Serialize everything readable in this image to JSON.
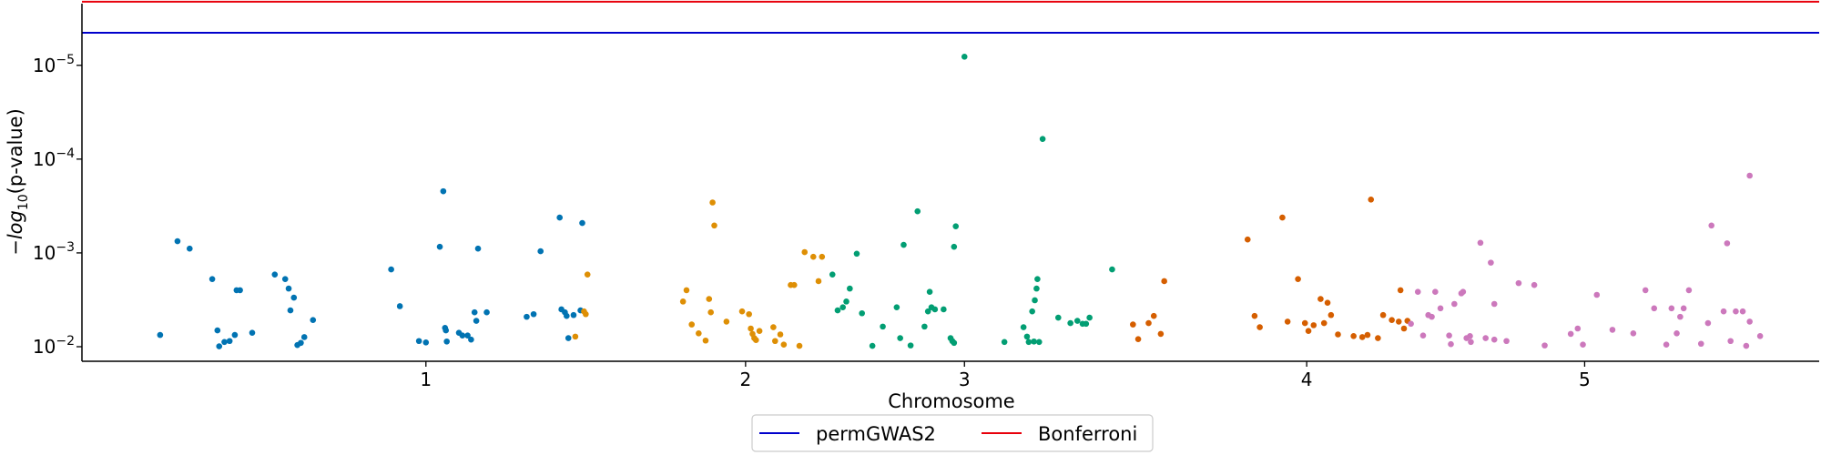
{
  "chart_data": {
    "type": "scatter",
    "title": "",
    "xlabel": "Chromosome",
    "ylabel_prefix": "−",
    "ylabel_italic": "log",
    "ylabel_sub": "10",
    "ylabel_suffix": "(p-value)",
    "y_scale": "log",
    "y_inverted": true,
    "ylim_pvalue": [
      0.0143,
      2.2e-06
    ],
    "y_ticks": [
      {
        "pvalue": 1e-05,
        "base": "10",
        "exp": "−5"
      },
      {
        "pvalue": 0.0001,
        "base": "10",
        "exp": "−4"
      },
      {
        "pvalue": 0.001,
        "base": "10",
        "exp": "−3"
      },
      {
        "pvalue": 0.01,
        "base": "10",
        "exp": "−2"
      }
    ],
    "xlim": [
      0,
      100
    ],
    "x_ticks": [
      {
        "x": 19.8,
        "label": "1"
      },
      {
        "x": 38.2,
        "label": "2"
      },
      {
        "x": 50.8,
        "label": "3"
      },
      {
        "x": 70.5,
        "label": "4"
      },
      {
        "x": 86.5,
        "label": "5"
      }
    ],
    "thresholds": [
      {
        "name": "permGWAS2",
        "pvalue": 4.5e-06,
        "color": "#0000cc"
      },
      {
        "name": "Bonferroni",
        "pvalue": 2.1e-06,
        "color": "#e8000b"
      }
    ],
    "grid": false,
    "legend_placement": "bottom-center",
    "series": [
      {
        "color": "#0173b2",
        "points": [
          [
            4.5,
            0.0075
          ],
          [
            5.5,
            0.00075
          ],
          [
            6.2,
            0.0009
          ],
          [
            7.5,
            0.0019
          ],
          [
            7.8,
            0.0067
          ],
          [
            7.9,
            0.0099
          ],
          [
            8.2,
            0.0089
          ],
          [
            8.5,
            0.0087
          ],
          [
            8.8,
            0.0075
          ],
          [
            8.9,
            0.0025
          ],
          [
            9.1,
            0.0025
          ],
          [
            9.8,
            0.0071
          ],
          [
            11.1,
            0.0017
          ],
          [
            11.7,
            0.0019
          ],
          [
            11.9,
            0.0024
          ],
          [
            12.0,
            0.0041
          ],
          [
            12.2,
            0.003
          ],
          [
            12.4,
            0.0096
          ],
          [
            12.6,
            0.0091
          ],
          [
            12.8,
            0.0079
          ],
          [
            13.3,
            0.0052
          ],
          [
            17.8,
            0.0015
          ],
          [
            18.3,
            0.0037
          ],
          [
            19.4,
            0.0087
          ],
          [
            19.8,
            0.009
          ],
          [
            20.8,
            0.00022
          ],
          [
            20.6,
            0.00086
          ],
          [
            20.9,
            0.0063
          ],
          [
            20.95,
            0.0067
          ],
          [
            21.0,
            0.0088
          ],
          [
            21.7,
            0.0071
          ],
          [
            21.9,
            0.0076
          ],
          [
            22.2,
            0.0076
          ],
          [
            22.4,
            0.0084
          ],
          [
            22.6,
            0.0043
          ],
          [
            22.7,
            0.0053
          ],
          [
            22.8,
            0.0009
          ],
          [
            23.3,
            0.0043
          ],
          [
            25.6,
            0.0048
          ],
          [
            26.0,
            0.0045
          ],
          [
            26.4,
            0.00096
          ],
          [
            27.5,
            0.00042
          ],
          [
            27.6,
            0.004
          ],
          [
            27.8,
            0.0043
          ],
          [
            27.9,
            0.0047
          ],
          [
            28.0,
            0.0081
          ],
          [
            28.3,
            0.0046
          ],
          [
            28.7,
            0.0041
          ],
          [
            28.8,
            0.00048
          ]
        ]
      },
      {
        "color": "#de8f05",
        "points": [
          [
            28.4,
            0.0078
          ],
          [
            28.9,
            0.0042
          ],
          [
            29.0,
            0.0045
          ],
          [
            29.1,
            0.0017
          ],
          [
            34.6,
            0.0033
          ],
          [
            34.8,
            0.0025
          ],
          [
            35.1,
            0.0058
          ],
          [
            35.5,
            0.0072
          ],
          [
            35.9,
            0.0086
          ],
          [
            36.1,
            0.0031
          ],
          [
            36.2,
            0.0043
          ],
          [
            36.3,
            0.00029
          ],
          [
            36.4,
            0.00051
          ],
          [
            37.1,
            0.0054
          ],
          [
            38.0,
            0.0042
          ],
          [
            38.4,
            0.0045
          ],
          [
            38.5,
            0.0064
          ],
          [
            38.6,
            0.0073
          ],
          [
            38.7,
            0.0081
          ],
          [
            38.8,
            0.0085
          ],
          [
            39.0,
            0.0068
          ],
          [
            39.8,
            0.0062
          ],
          [
            39.9,
            0.0087
          ],
          [
            40.2,
            0.0074
          ],
          [
            40.4,
            0.0095
          ],
          [
            40.8,
            0.0022
          ],
          [
            41.0,
            0.0022
          ],
          [
            41.3,
            0.0098
          ],
          [
            41.6,
            0.00098
          ],
          [
            42.1,
            0.0011
          ],
          [
            42.4,
            0.002
          ],
          [
            42.6,
            0.0011
          ]
        ]
      },
      {
        "color": "#029e73",
        "points": [
          [
            43.2,
            0.0017
          ],
          [
            43.5,
            0.0041
          ],
          [
            43.8,
            0.0038
          ],
          [
            44.0,
            0.0033
          ],
          [
            44.2,
            0.0024
          ],
          [
            44.6,
            0.00102
          ],
          [
            44.9,
            0.0044
          ],
          [
            45.5,
            0.0098
          ],
          [
            46.1,
            0.0061
          ],
          [
            46.9,
            0.0038
          ],
          [
            47.1,
            0.0081
          ],
          [
            47.7,
            0.0097
          ],
          [
            47.3,
            0.00082
          ],
          [
            48.1,
            0.00036
          ],
          [
            48.5,
            0.0061
          ],
          [
            48.7,
            0.0042
          ],
          [
            48.8,
            0.0026
          ],
          [
            48.9,
            0.0038
          ],
          [
            49.1,
            0.004
          ],
          [
            49.6,
            0.004
          ],
          [
            50.0,
            0.0081
          ],
          [
            50.1,
            0.0087
          ],
          [
            50.2,
            0.0091
          ],
          [
            50.2,
            0.00086
          ],
          [
            50.3,
            0.00052
          ],
          [
            50.8,
            8.1e-06
          ],
          [
            53.1,
            0.0089
          ],
          [
            54.2,
            0.0062
          ],
          [
            54.4,
            0.0078
          ],
          [
            54.5,
            0.0089
          ],
          [
            54.7,
            0.0042
          ],
          [
            54.8,
            0.0088
          ],
          [
            54.85,
            0.0032
          ],
          [
            54.95,
            0.0024
          ],
          [
            55.0,
            0.0019
          ],
          [
            55.1,
            0.0089
          ],
          [
            55.3,
            6.1e-05
          ],
          [
            56.2,
            0.0049
          ],
          [
            56.9,
            0.0056
          ],
          [
            57.3,
            0.0053
          ],
          [
            57.6,
            0.0057
          ],
          [
            57.8,
            0.0057
          ],
          [
            58.0,
            0.0049
          ],
          [
            59.3,
            0.0015
          ]
        ]
      },
      {
        "color": "#d55e00",
        "points": [
          [
            60.5,
            0.0058
          ],
          [
            60.8,
            0.0083
          ],
          [
            61.4,
            0.0056
          ],
          [
            61.7,
            0.0047
          ],
          [
            62.1,
            0.0073
          ],
          [
            62.3,
            0.002
          ],
          [
            67.1,
            0.00072
          ],
          [
            67.5,
            0.0047
          ],
          [
            67.8,
            0.0062
          ],
          [
            69.1,
            0.00042
          ],
          [
            69.4,
            0.0054
          ],
          [
            70.0,
            0.0019
          ],
          [
            70.4,
            0.0056
          ],
          [
            70.6,
            0.0068
          ],
          [
            70.9,
            0.0059
          ],
          [
            71.3,
            0.0031
          ],
          [
            71.5,
            0.0056
          ],
          [
            71.7,
            0.0034
          ],
          [
            71.9,
            0.0046
          ],
          [
            72.3,
            0.0074
          ],
          [
            73.2,
            0.0077
          ],
          [
            73.7,
            0.0079
          ],
          [
            74.0,
            0.0075
          ],
          [
            74.2,
            0.00027
          ],
          [
            74.6,
            0.0081
          ],
          [
            74.9,
            0.0046
          ],
          [
            75.4,
            0.0052
          ],
          [
            75.8,
            0.0054
          ],
          [
            76.1,
            0.0064
          ],
          [
            75.9,
            0.0025
          ],
          [
            76.3,
            0.0053
          ]
        ]
      },
      {
        "color": "#cc78bc",
        "points": [
          [
            76.5,
            0.0057
          ],
          [
            76.9,
            0.0026
          ],
          [
            77.2,
            0.0076
          ],
          [
            77.5,
            0.0046
          ],
          [
            77.7,
            0.0048
          ],
          [
            77.9,
            0.0026
          ],
          [
            78.2,
            0.0039
          ],
          [
            78.7,
            0.0076
          ],
          [
            78.8,
            0.0094
          ],
          [
            79.0,
            0.0035
          ],
          [
            79.4,
            0.0027
          ],
          [
            79.5,
            0.0026
          ],
          [
            79.7,
            0.0081
          ],
          [
            79.9,
            0.0077
          ],
          [
            79.95,
            0.0089
          ],
          [
            80.5,
            0.00078
          ],
          [
            80.8,
            0.0081
          ],
          [
            81.3,
            0.0084
          ],
          [
            81.1,
            0.00127
          ],
          [
            81.3,
            0.0035
          ],
          [
            82.0,
            0.0087
          ],
          [
            82.7,
            0.0021
          ],
          [
            83.6,
            0.0022
          ],
          [
            84.2,
            0.0097
          ],
          [
            85.7,
            0.0073
          ],
          [
            86.1,
            0.0064
          ],
          [
            86.4,
            0.0095
          ],
          [
            87.2,
            0.0028
          ],
          [
            88.1,
            0.0066
          ],
          [
            89.3,
            0.0072
          ],
          [
            90.0,
            0.0025
          ],
          [
            90.5,
            0.0039
          ],
          [
            91.2,
            0.0095
          ],
          [
            91.5,
            0.0039
          ],
          [
            91.8,
            0.0072
          ],
          [
            92.0,
            0.0048
          ],
          [
            92.2,
            0.0039
          ],
          [
            92.5,
            0.0025
          ],
          [
            93.8,
            0.00051
          ],
          [
            93.2,
            0.0093
          ],
          [
            93.6,
            0.0056
          ],
          [
            94.5,
            0.0042
          ],
          [
            94.7,
            0.00079
          ],
          [
            94.9,
            0.0087
          ],
          [
            95.2,
            0.0042
          ],
          [
            95.6,
            0.0042
          ],
          [
            95.8,
            0.0098
          ],
          [
            96.0,
            0.0054
          ],
          [
            96.6,
            0.0077
          ],
          [
            96.0,
            0.00015
          ]
        ]
      }
    ]
  }
}
